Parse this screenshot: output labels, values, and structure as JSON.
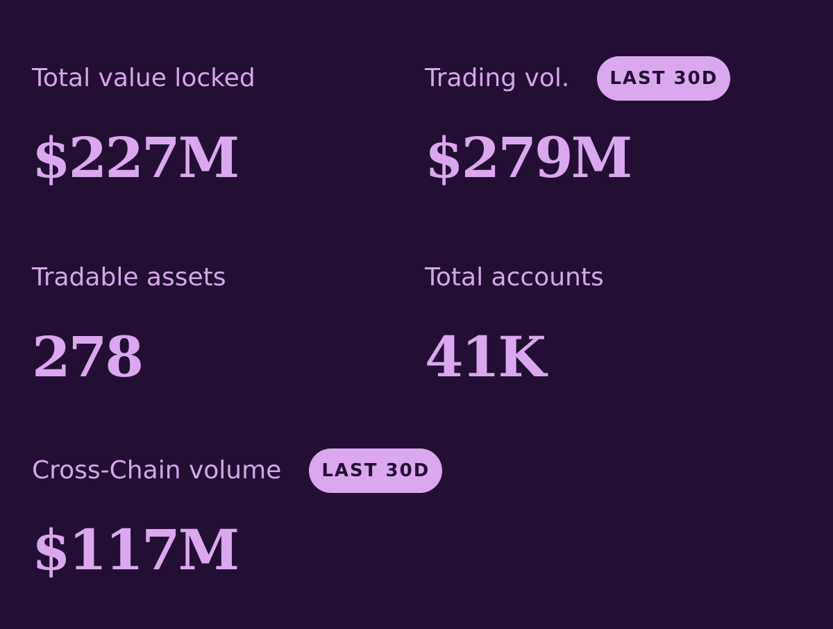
{
  "stats": [
    {
      "label": "Total value locked",
      "value": "$227M",
      "badge": ""
    },
    {
      "label": "Trading vol.",
      "value": "$279M",
      "badge": "LAST 30D"
    },
    {
      "label": "Tradable assets",
      "value": "278",
      "badge": ""
    },
    {
      "label": "Total accounts",
      "value": "41K",
      "badge": ""
    },
    {
      "label": "Cross-Chain volume",
      "value": "$117M",
      "badge": "LAST 30D"
    }
  ],
  "colors": {
    "background": "#230f33",
    "label": "#d4a7ea",
    "value": "#dba8f0",
    "badge_bg": "#dba8f0",
    "badge_text": "#230f33"
  }
}
